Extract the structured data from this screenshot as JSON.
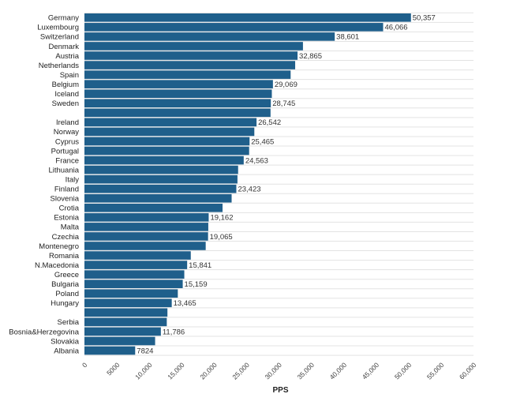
{
  "chart_data": {
    "type": "bar",
    "orientation": "horizontal",
    "xlabel": "PPS",
    "ylabel": "",
    "title": "",
    "xlim": [
      0,
      60000
    ],
    "grid": true,
    "bar_color": "#1f5f8b",
    "ticks": [
      {
        "value": 0,
        "label": "0"
      },
      {
        "value": 5000,
        "label": "5000"
      },
      {
        "value": 10000,
        "label": "10,000"
      },
      {
        "value": 15000,
        "label": "15,000"
      },
      {
        "value": 20000,
        "label": "20,000"
      },
      {
        "value": 25000,
        "label": "25,000"
      },
      {
        "value": 30000,
        "label": "30,000"
      },
      {
        "value": 35000,
        "label": "35,000"
      },
      {
        "value": 40000,
        "label": "40,000"
      },
      {
        "value": 45000,
        "label": "45,000"
      },
      {
        "value": 50000,
        "label": "50,000"
      },
      {
        "value": 55000,
        "label": "55,000"
      },
      {
        "value": 60000,
        "label": "60,000"
      }
    ],
    "bars": [
      {
        "category": "Germany",
        "value": 50357,
        "label": "50,357"
      },
      {
        "category": "Luxembourg",
        "value": 46066,
        "label": "46,066"
      },
      {
        "category": "Switzerland",
        "value": 38601,
        "label": "38,601"
      },
      {
        "category": "Denmark",
        "value": 33700,
        "label": ""
      },
      {
        "category": "Austria",
        "value": 32865,
        "label": "32,865"
      },
      {
        "category": "Netherlands",
        "value": 32500,
        "label": ""
      },
      {
        "category": "Spain",
        "value": 31800,
        "label": ""
      },
      {
        "category": "Belgium",
        "value": 29069,
        "label": "29,069"
      },
      {
        "category": "Iceland",
        "value": 28900,
        "label": ""
      },
      {
        "category": "Sweden",
        "value": 28745,
        "label": "28,745"
      },
      {
        "category": "",
        "value": 28700,
        "label": ""
      },
      {
        "category": "Ireland",
        "value": 26542,
        "label": "26,542"
      },
      {
        "category": "Norway",
        "value": 26200,
        "label": ""
      },
      {
        "category": "Cyprus",
        "value": 25465,
        "label": "25,465"
      },
      {
        "category": "Portugal",
        "value": 25400,
        "label": ""
      },
      {
        "category": "France",
        "value": 24563,
        "label": "24,563"
      },
      {
        "category": "Lithuania",
        "value": 23700,
        "label": ""
      },
      {
        "category": "Italy",
        "value": 23600,
        "label": ""
      },
      {
        "category": "Finland",
        "value": 23423,
        "label": "23,423"
      },
      {
        "category": "Slovenia",
        "value": 22700,
        "label": ""
      },
      {
        "category": "Crotia",
        "value": 21300,
        "label": ""
      },
      {
        "category": "Estonia",
        "value": 19162,
        "label": "19,162"
      },
      {
        "category": "Malta",
        "value": 19100,
        "label": ""
      },
      {
        "category": "Czechia",
        "value": 19065,
        "label": "19,065"
      },
      {
        "category": "Montenegro",
        "value": 18700,
        "label": ""
      },
      {
        "category": "Romania",
        "value": 16400,
        "label": ""
      },
      {
        "category": "N.Macedonia",
        "value": 15841,
        "label": "15,841"
      },
      {
        "category": "Greece",
        "value": 15400,
        "label": ""
      },
      {
        "category": "Bulgaria",
        "value": 15159,
        "label": "15,159"
      },
      {
        "category": "Poland",
        "value": 14400,
        "label": ""
      },
      {
        "category": "Hungary",
        "value": 13465,
        "label": "13,465"
      },
      {
        "category": "",
        "value": 12800,
        "label": ""
      },
      {
        "category": "Serbia",
        "value": 12700,
        "label": ""
      },
      {
        "category": "Bosnia&Herzegovina",
        "value": 11786,
        "label": "11,786"
      },
      {
        "category": "Slovakia",
        "value": 10900,
        "label": ""
      },
      {
        "category": "Albania",
        "value": 7824,
        "label": "7824"
      }
    ]
  }
}
